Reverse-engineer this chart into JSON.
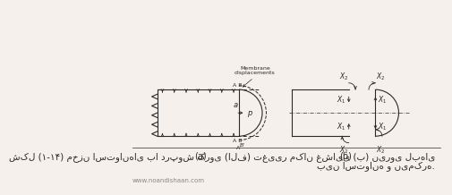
{
  "bg_color": "#f5f0eb",
  "line_color": "#2a2a2a",
  "title_text": "شکل (۱-۱۴) مخزن استوانهای با درپوش کروی (الف) تغییر مکان غشایی (ب) نیروی لبهای",
  "subtitle_text": "بین استوانه و نیمکره.",
  "watermark": "www.noandishaan.com",
  "label_a": "(a)",
  "label_b": "(b)",
  "membrane_text": "Membrane\ndisplacements",
  "p_label": "p",
  "a_label": "a",
  "AB_top": "A B",
  "AB_bot": "A B",
  "Aprime": "A'",
  "Bprime": "B'"
}
